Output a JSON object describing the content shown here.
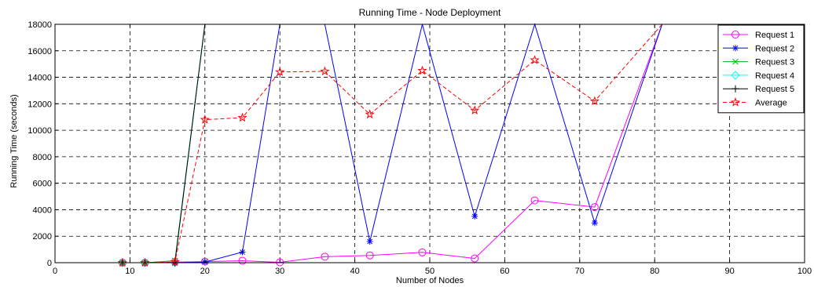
{
  "chart_data": {
    "type": "line",
    "title": "Running Time - Node Deployment",
    "xlabel": "Number of Nodes",
    "ylabel": "Running Time (seconds)",
    "xlim": [
      0,
      100
    ],
    "ylim": [
      0,
      18000
    ],
    "xticks": [
      0,
      10,
      20,
      30,
      40,
      50,
      60,
      70,
      80,
      90,
      100
    ],
    "yticks": [
      0,
      2000,
      4000,
      6000,
      8000,
      10000,
      12000,
      14000,
      16000,
      18000
    ],
    "grid": true,
    "legend_position": "top-right",
    "series": [
      {
        "name": "Request 1",
        "color": "#ff00ff",
        "marker": "circle",
        "line_style": "solid",
        "x": [
          9,
          12,
          16,
          20,
          25,
          30,
          36,
          42,
          49,
          56,
          64,
          72,
          81
        ],
        "y": [
          0,
          0,
          50,
          80,
          150,
          30,
          450,
          550,
          780,
          320,
          4700,
          4200,
          18000
        ]
      },
      {
        "name": "Request 2",
        "color": "#0000ff",
        "marker": "asterisk",
        "line_style": "solid",
        "x": [
          9,
          12,
          16,
          20,
          25,
          30,
          36,
          42,
          49,
          56,
          64,
          72,
          81
        ],
        "y": [
          0,
          0,
          0,
          50,
          800,
          18000,
          18000,
          1600,
          18000,
          3500,
          18000,
          3000,
          18000
        ]
      },
      {
        "name": "Request 3",
        "color": "#00bb00",
        "marker": "x",
        "line_style": "solid",
        "x": [
          9,
          12,
          16,
          20
        ],
        "y": [
          0,
          0,
          150,
          18000
        ]
      },
      {
        "name": "Request 4",
        "color": "#00ffff",
        "marker": "diamond",
        "line_style": "solid",
        "x": [
          9,
          12,
          16,
          20
        ],
        "y": [
          0,
          0,
          0,
          18000
        ]
      },
      {
        "name": "Request 5",
        "color": "#000000",
        "marker": "plus",
        "line_style": "solid",
        "x": [
          9,
          12,
          16,
          20
        ],
        "y": [
          0,
          0,
          0,
          18000
        ]
      },
      {
        "name": "Average",
        "color": "#ff0000",
        "marker": "star",
        "line_style": "dashed",
        "x": [
          9,
          12,
          16,
          20,
          25,
          30,
          36,
          42,
          49,
          56,
          64,
          72,
          81
        ],
        "y": [
          0,
          0,
          50,
          10800,
          10950,
          14400,
          14450,
          11200,
          14500,
          11500,
          15300,
          12200,
          18000
        ]
      }
    ]
  }
}
